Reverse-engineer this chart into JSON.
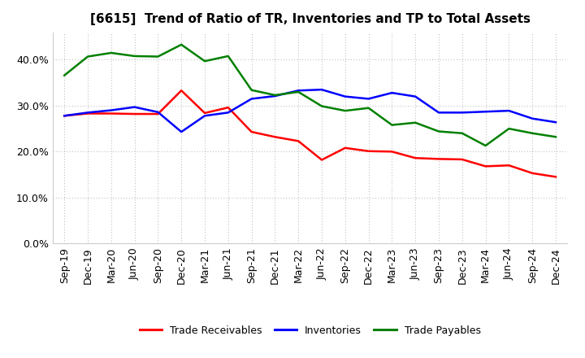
{
  "title": "[6615]  Trend of Ratio of TR, Inventories and TP to Total Assets",
  "x_labels": [
    "Sep-19",
    "Dec-19",
    "Mar-20",
    "Jun-20",
    "Sep-20",
    "Dec-20",
    "Mar-21",
    "Jun-21",
    "Sep-21",
    "Dec-21",
    "Mar-22",
    "Jun-22",
    "Sep-22",
    "Dec-22",
    "Mar-23",
    "Jun-23",
    "Sep-23",
    "Dec-23",
    "Mar-24",
    "Jun-24",
    "Sep-24",
    "Dec-24"
  ],
  "trade_receivables": [
    0.278,
    0.283,
    0.283,
    0.282,
    0.282,
    0.333,
    0.284,
    0.296,
    0.243,
    0.232,
    0.223,
    0.182,
    0.208,
    0.201,
    0.2,
    0.186,
    0.184,
    0.183,
    0.168,
    0.17,
    0.153,
    0.145
  ],
  "inventories": [
    0.278,
    0.285,
    0.29,
    0.297,
    0.286,
    0.243,
    0.278,
    0.285,
    0.315,
    0.321,
    0.333,
    0.335,
    0.32,
    0.315,
    0.328,
    0.32,
    0.285,
    0.285,
    0.287,
    0.289,
    0.272,
    0.264
  ],
  "trade_payables": [
    0.366,
    0.407,
    0.415,
    0.408,
    0.407,
    0.433,
    0.397,
    0.408,
    0.334,
    0.323,
    0.33,
    0.299,
    0.289,
    0.295,
    0.258,
    0.263,
    0.244,
    0.24,
    0.213,
    0.25,
    0.24,
    0.232
  ],
  "ylim": [
    0.0,
    0.46
  ],
  "yticks": [
    0.0,
    0.1,
    0.2,
    0.3,
    0.4
  ],
  "color_tr": "#ff0000",
  "color_inv": "#0000ff",
  "color_tp": "#008000",
  "legend_labels": [
    "Trade Receivables",
    "Inventories",
    "Trade Payables"
  ],
  "background_color": "#ffffff",
  "grid_color": "#999999",
  "title_fontsize": 11,
  "linewidth": 1.8,
  "tick_fontsize": 9
}
